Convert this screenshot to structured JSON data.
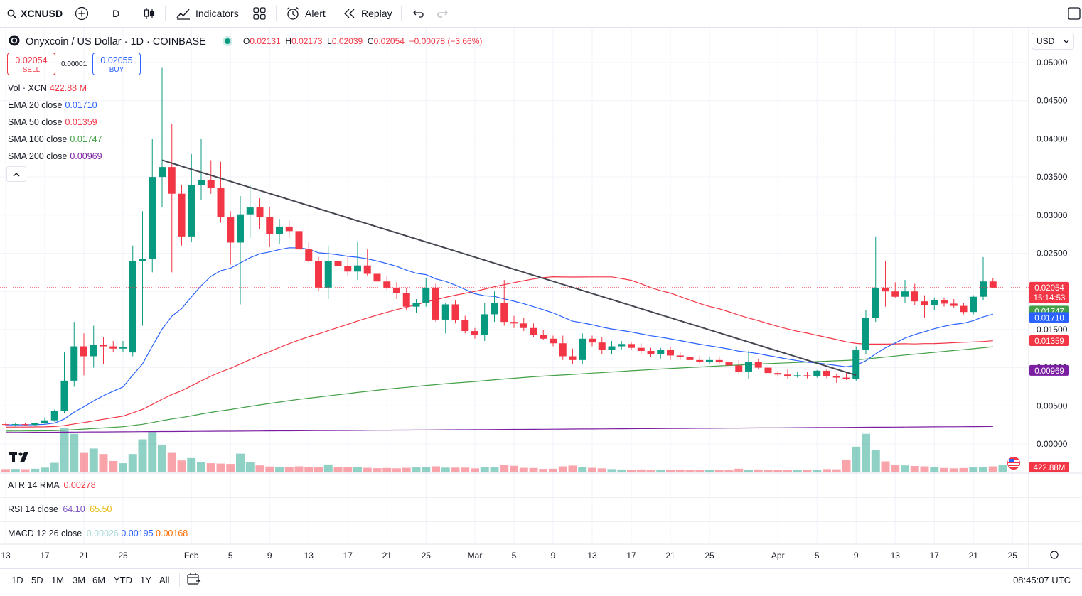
{
  "toolbar": {
    "symbol": "XCNUSD",
    "interval": "D",
    "indicators_label": "Indicators",
    "alert_label": "Alert",
    "replay_label": "Replay"
  },
  "header": {
    "title": "Onyxcoin / US Dollar · 1D · COINBASE",
    "ohlc": {
      "o_label": "O",
      "o": "0.02131",
      "h_label": "H",
      "h": "0.02173",
      "l_label": "L",
      "l": "0.02039",
      "c_label": "C",
      "c": "0.02054",
      "change": "−0.00078 (−3.66%)"
    },
    "sell_price": "0.02054",
    "sell_label": "SELL",
    "buy_price": "0.02055",
    "buy_label": "BUY",
    "spread": "0.00001",
    "currency": "USD"
  },
  "legend": [
    {
      "name": "Vol · XCN",
      "value": "422.88 M",
      "color": "#f23645"
    },
    {
      "name": "EMA 20 close",
      "value": "0.01710",
      "color": "#2962ff"
    },
    {
      "name": "SMA 50 close",
      "value": "0.01359",
      "color": "#f23645"
    },
    {
      "name": "SMA 100 close",
      "value": "0.01747",
      "color": "#43a047"
    },
    {
      "name": "SMA 200 close",
      "value": "0.00969",
      "color": "#7b1fa2"
    }
  ],
  "panes": {
    "atr": {
      "name": "ATR 14 RMA",
      "value": "0.00278",
      "color": "#f23645"
    },
    "rsi": {
      "name": "RSI 14 close",
      "value1": "64.10",
      "value2": "65.50",
      "color1": "#7e57c2",
      "color2": "#e8b90b"
    },
    "macd": {
      "name": "MACD 12 26 close",
      "value1": "0.00026",
      "value2": "0.00195",
      "value3": "0.00168",
      "color1": "#a8dadb",
      "color2": "#2962ff",
      "color3": "#ff6d00"
    }
  },
  "price_badges": {
    "last": "0.02054",
    "countdown": "15:14:53",
    "sma100": "0.01747",
    "ema20": "0.01710",
    "sma50": "0.01359",
    "sma200": "0.00969",
    "volume": "422.88M"
  },
  "colors": {
    "up": "#089981",
    "down": "#f23645",
    "ema20": "#2962ff",
    "sma50": "#f23645",
    "sma100": "#43a047",
    "sma200": "#7b1fa2",
    "trendline": "#434651"
  },
  "bottom": {
    "ranges": [
      "1D",
      "5D",
      "1M",
      "3M",
      "6M",
      "YTD",
      "1Y",
      "All"
    ],
    "time": "08:45:07 UTC"
  },
  "chart_data": {
    "type": "candlestick",
    "title": "Onyxcoin / US Dollar · 1D · COINBASE",
    "y_ticks": [
      "0.05000",
      "0.04500",
      "0.04000",
      "0.03500",
      "0.03000",
      "0.02500",
      "0.02000",
      "0.01500",
      "0.01000",
      "0.00500",
      "0.00000"
    ],
    "ylim": [
      0,
      0.05
    ],
    "x_ticks": [
      "13",
      "17",
      "21",
      "25",
      "Feb",
      "5",
      "9",
      "13",
      "17",
      "21",
      "25",
      "Mar",
      "5",
      "9",
      "13",
      "17",
      "21",
      "25",
      "Apr",
      "5",
      "9",
      "13",
      "17",
      "21",
      "25"
    ],
    "x_tick_days": [
      0,
      4,
      8,
      12,
      19,
      23,
      27,
      31,
      35,
      39,
      43,
      48,
      52,
      56,
      60,
      64,
      68,
      72,
      79,
      83,
      87,
      91,
      95,
      99,
      103
    ],
    "candles": [
      {
        "o": 0.0026,
        "h": 0.0028,
        "l": 0.0024,
        "c": 0.0025
      },
      {
        "o": 0.0025,
        "h": 0.0028,
        "l": 0.0023,
        "c": 0.0026
      },
      {
        "o": 0.0026,
        "h": 0.0027,
        "l": 0.0024,
        "c": 0.0025
      },
      {
        "o": 0.0025,
        "h": 0.0028,
        "l": 0.0024,
        "c": 0.0027
      },
      {
        "o": 0.0027,
        "h": 0.0035,
        "l": 0.0026,
        "c": 0.0031
      },
      {
        "o": 0.0031,
        "h": 0.0045,
        "l": 0.0029,
        "c": 0.0043
      },
      {
        "o": 0.0043,
        "h": 0.012,
        "l": 0.004,
        "c": 0.0083
      },
      {
        "o": 0.0083,
        "h": 0.016,
        "l": 0.0075,
        "c": 0.0128
      },
      {
        "o": 0.0128,
        "h": 0.0145,
        "l": 0.009,
        "c": 0.0115
      },
      {
        "o": 0.0115,
        "h": 0.0155,
        "l": 0.01,
        "c": 0.013
      },
      {
        "o": 0.013,
        "h": 0.014,
        "l": 0.0105,
        "c": 0.0128
      },
      {
        "o": 0.0128,
        "h": 0.0135,
        "l": 0.012,
        "c": 0.0125
      },
      {
        "o": 0.0125,
        "h": 0.0135,
        "l": 0.012,
        "c": 0.0127
      },
      {
        "o": 0.012,
        "h": 0.026,
        "l": 0.0115,
        "c": 0.024
      },
      {
        "o": 0.024,
        "h": 0.0305,
        "l": 0.0155,
        "c": 0.0243
      },
      {
        "o": 0.0243,
        "h": 0.04,
        "l": 0.0225,
        "c": 0.035
      },
      {
        "o": 0.035,
        "h": 0.0493,
        "l": 0.031,
        "c": 0.0363
      },
      {
        "o": 0.0363,
        "h": 0.042,
        "l": 0.0225,
        "c": 0.0328
      },
      {
        "o": 0.0328,
        "h": 0.034,
        "l": 0.026,
        "c": 0.0272
      },
      {
        "o": 0.0272,
        "h": 0.038,
        "l": 0.0265,
        "c": 0.0339
      },
      {
        "o": 0.0339,
        "h": 0.04,
        "l": 0.032,
        "c": 0.0346
      },
      {
        "o": 0.0346,
        "h": 0.0372,
        "l": 0.0328,
        "c": 0.0336
      },
      {
        "o": 0.0336,
        "h": 0.037,
        "l": 0.029,
        "c": 0.0297
      },
      {
        "o": 0.0297,
        "h": 0.0305,
        "l": 0.0235,
        "c": 0.0264
      },
      {
        "o": 0.0264,
        "h": 0.0325,
        "l": 0.0183,
        "c": 0.0301
      },
      {
        "o": 0.0301,
        "h": 0.034,
        "l": 0.027,
        "c": 0.031
      },
      {
        "o": 0.031,
        "h": 0.0322,
        "l": 0.0282,
        "c": 0.0297
      },
      {
        "o": 0.0297,
        "h": 0.031,
        "l": 0.0258,
        "c": 0.0275
      },
      {
        "o": 0.0275,
        "h": 0.0295,
        "l": 0.0262,
        "c": 0.0285
      },
      {
        "o": 0.0285,
        "h": 0.0293,
        "l": 0.027,
        "c": 0.0279
      },
      {
        "o": 0.0279,
        "h": 0.0285,
        "l": 0.0235,
        "c": 0.0255
      },
      {
        "o": 0.0255,
        "h": 0.0265,
        "l": 0.0238,
        "c": 0.024
      },
      {
        "o": 0.024,
        "h": 0.0245,
        "l": 0.02,
        "c": 0.0205
      },
      {
        "o": 0.0205,
        "h": 0.026,
        "l": 0.019,
        "c": 0.024
      },
      {
        "o": 0.024,
        "h": 0.0278,
        "l": 0.0225,
        "c": 0.0233
      },
      {
        "o": 0.0233,
        "h": 0.0245,
        "l": 0.022,
        "c": 0.0226
      },
      {
        "o": 0.0226,
        "h": 0.0265,
        "l": 0.0215,
        "c": 0.0234
      },
      {
        "o": 0.0234,
        "h": 0.0255,
        "l": 0.022,
        "c": 0.0223
      },
      {
        "o": 0.0223,
        "h": 0.0232,
        "l": 0.0205,
        "c": 0.0213
      },
      {
        "o": 0.0213,
        "h": 0.022,
        "l": 0.0202,
        "c": 0.0205
      },
      {
        "o": 0.0205,
        "h": 0.0212,
        "l": 0.019,
        "c": 0.0198
      },
      {
        "o": 0.0198,
        "h": 0.0205,
        "l": 0.0175,
        "c": 0.018
      },
      {
        "o": 0.018,
        "h": 0.019,
        "l": 0.0172,
        "c": 0.0185
      },
      {
        "o": 0.0185,
        "h": 0.0218,
        "l": 0.018,
        "c": 0.0205
      },
      {
        "o": 0.0205,
        "h": 0.021,
        "l": 0.016,
        "c": 0.0163
      },
      {
        "o": 0.0163,
        "h": 0.0185,
        "l": 0.0145,
        "c": 0.0183
      },
      {
        "o": 0.0183,
        "h": 0.0188,
        "l": 0.0158,
        "c": 0.0162
      },
      {
        "o": 0.0162,
        "h": 0.0168,
        "l": 0.0145,
        "c": 0.0148
      },
      {
        "o": 0.0148,
        "h": 0.0152,
        "l": 0.0138,
        "c": 0.0143
      },
      {
        "o": 0.0143,
        "h": 0.0185,
        "l": 0.0135,
        "c": 0.017
      },
      {
        "o": 0.017,
        "h": 0.02,
        "l": 0.016,
        "c": 0.0185
      },
      {
        "o": 0.0185,
        "h": 0.0215,
        "l": 0.0155,
        "c": 0.016
      },
      {
        "o": 0.016,
        "h": 0.0168,
        "l": 0.0152,
        "c": 0.0158
      },
      {
        "o": 0.0158,
        "h": 0.0165,
        "l": 0.0148,
        "c": 0.0152
      },
      {
        "o": 0.0152,
        "h": 0.0158,
        "l": 0.014,
        "c": 0.0143
      },
      {
        "o": 0.0143,
        "h": 0.015,
        "l": 0.0136,
        "c": 0.0138
      },
      {
        "o": 0.0138,
        "h": 0.0142,
        "l": 0.0128,
        "c": 0.0132
      },
      {
        "o": 0.0132,
        "h": 0.0142,
        "l": 0.011,
        "c": 0.0115
      },
      {
        "o": 0.0115,
        "h": 0.0125,
        "l": 0.0105,
        "c": 0.011
      },
      {
        "o": 0.011,
        "h": 0.0145,
        "l": 0.0105,
        "c": 0.0138
      },
      {
        "o": 0.0138,
        "h": 0.0142,
        "l": 0.0128,
        "c": 0.0133
      },
      {
        "o": 0.0133,
        "h": 0.014,
        "l": 0.0118,
        "c": 0.0123
      },
      {
        "o": 0.0123,
        "h": 0.0135,
        "l": 0.0118,
        "c": 0.0128
      },
      {
        "o": 0.0128,
        "h": 0.0135,
        "l": 0.0124,
        "c": 0.0131
      },
      {
        "o": 0.0131,
        "h": 0.0134,
        "l": 0.0124,
        "c": 0.0126
      },
      {
        "o": 0.0126,
        "h": 0.0132,
        "l": 0.0118,
        "c": 0.0122
      },
      {
        "o": 0.0122,
        "h": 0.0126,
        "l": 0.0114,
        "c": 0.0118
      },
      {
        "o": 0.0118,
        "h": 0.0126,
        "l": 0.0112,
        "c": 0.0123
      },
      {
        "o": 0.0123,
        "h": 0.0127,
        "l": 0.011,
        "c": 0.0116
      },
      {
        "o": 0.0116,
        "h": 0.0121,
        "l": 0.011,
        "c": 0.0114
      },
      {
        "o": 0.0114,
        "h": 0.0118,
        "l": 0.0106,
        "c": 0.011
      },
      {
        "o": 0.011,
        "h": 0.0116,
        "l": 0.0105,
        "c": 0.0108
      },
      {
        "o": 0.0108,
        "h": 0.0114,
        "l": 0.0104,
        "c": 0.011
      },
      {
        "o": 0.011,
        "h": 0.0115,
        "l": 0.0104,
        "c": 0.0107
      },
      {
        "o": 0.0107,
        "h": 0.0112,
        "l": 0.01,
        "c": 0.0103
      },
      {
        "o": 0.0103,
        "h": 0.011,
        "l": 0.0092,
        "c": 0.0095
      },
      {
        "o": 0.0095,
        "h": 0.0122,
        "l": 0.0085,
        "c": 0.0108
      },
      {
        "o": 0.0108,
        "h": 0.0112,
        "l": 0.0098,
        "c": 0.01
      },
      {
        "o": 0.01,
        "h": 0.0104,
        "l": 0.009,
        "c": 0.0093
      },
      {
        "o": 0.0093,
        "h": 0.0096,
        "l": 0.0088,
        "c": 0.0091
      },
      {
        "o": 0.0091,
        "h": 0.0098,
        "l": 0.0085,
        "c": 0.0089
      },
      {
        "o": 0.0089,
        "h": 0.0095,
        "l": 0.0087,
        "c": 0.009
      },
      {
        "o": 0.009,
        "h": 0.0094,
        "l": 0.0086,
        "c": 0.0089
      },
      {
        "o": 0.0089,
        "h": 0.0097,
        "l": 0.0087,
        "c": 0.0096
      },
      {
        "o": 0.0096,
        "h": 0.0098,
        "l": 0.0086,
        "c": 0.0089
      },
      {
        "o": 0.0089,
        "h": 0.0092,
        "l": 0.008,
        "c": 0.0087
      },
      {
        "o": 0.0087,
        "h": 0.0093,
        "l": 0.0084,
        "c": 0.0085
      },
      {
        "o": 0.0085,
        "h": 0.0128,
        "l": 0.0083,
        "c": 0.0123
      },
      {
        "o": 0.0123,
        "h": 0.0175,
        "l": 0.0118,
        "c": 0.0165
      },
      {
        "o": 0.0165,
        "h": 0.0272,
        "l": 0.016,
        "c": 0.0205
      },
      {
        "o": 0.0205,
        "h": 0.024,
        "l": 0.018,
        "c": 0.02
      },
      {
        "o": 0.02,
        "h": 0.0212,
        "l": 0.0192,
        "c": 0.0193
      },
      {
        "o": 0.0193,
        "h": 0.0215,
        "l": 0.0185,
        "c": 0.02
      },
      {
        "o": 0.02,
        "h": 0.021,
        "l": 0.0182,
        "c": 0.0187
      },
      {
        "o": 0.0187,
        "h": 0.0195,
        "l": 0.0165,
        "c": 0.0182
      },
      {
        "o": 0.0182,
        "h": 0.0192,
        "l": 0.0175,
        "c": 0.0189
      },
      {
        "o": 0.0189,
        "h": 0.0192,
        "l": 0.018,
        "c": 0.0184
      },
      {
        "o": 0.0184,
        "h": 0.019,
        "l": 0.0178,
        "c": 0.0181
      },
      {
        "o": 0.0181,
        "h": 0.0185,
        "l": 0.017,
        "c": 0.0173
      },
      {
        "o": 0.0173,
        "h": 0.0195,
        "l": 0.017,
        "c": 0.0193
      },
      {
        "o": 0.0193,
        "h": 0.0245,
        "l": 0.0188,
        "c": 0.0213
      },
      {
        "o": 0.0213,
        "h": 0.0217,
        "l": 0.0204,
        "c": 0.0205
      }
    ],
    "volume_millions": [
      180,
      190,
      175,
      200,
      260,
      520,
      2400,
      2100,
      1100,
      1300,
      1000,
      620,
      500,
      1000,
      1800,
      2200,
      1500,
      1100,
      650,
      780,
      560,
      500,
      480,
      460,
      1020,
      540,
      380,
      320,
      300,
      280,
      330,
      300,
      270,
      430,
      300,
      280,
      300,
      250,
      230,
      240,
      220,
      250,
      270,
      300,
      330,
      260,
      260,
      260,
      220,
      300,
      270,
      390,
      360,
      250,
      240,
      190,
      200,
      330,
      370,
      310,
      250,
      220,
      180,
      160,
      150,
      160,
      150,
      150,
      140,
      160,
      140,
      130,
      140,
      150,
      150,
      200,
      140,
      160,
      120,
      120,
      130,
      140,
      150,
      130,
      180,
      170,
      700,
      1400,
      2100,
      1200,
      600,
      420,
      380,
      350,
      330,
      280,
      240,
      220,
      240,
      270,
      290,
      330,
      423
    ],
    "trendline": {
      "x": [
        16,
        87
      ],
      "y": [
        0.0372,
        0.009
      ]
    }
  }
}
